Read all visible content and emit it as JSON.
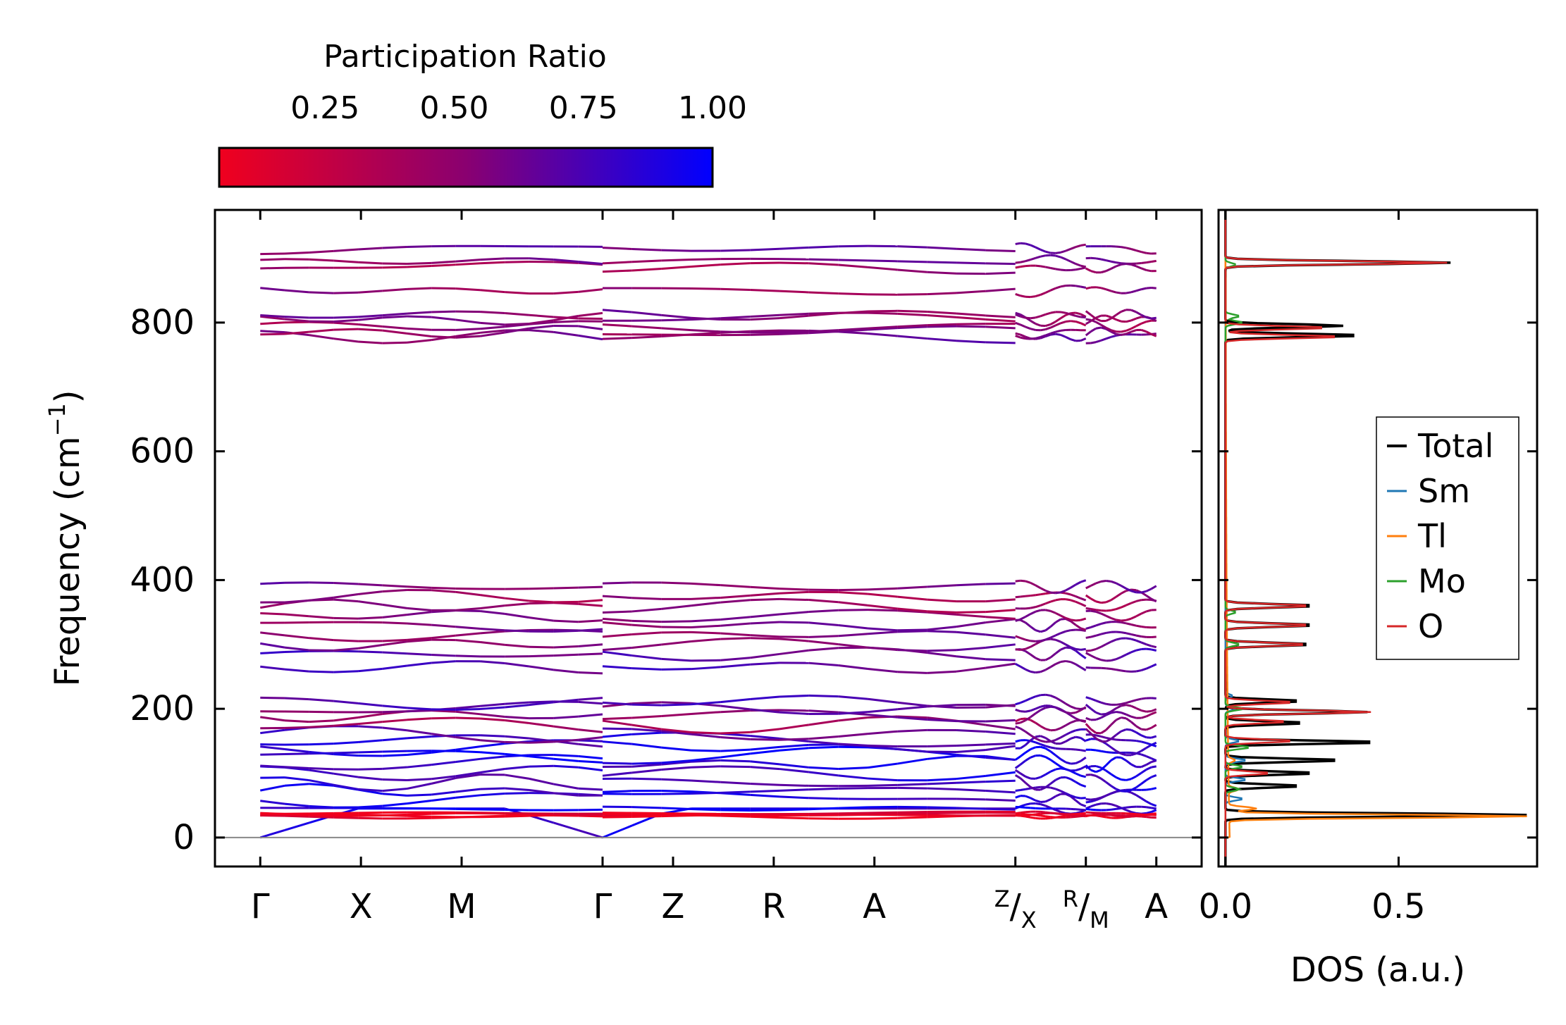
{
  "chart_data": [
    {
      "type": "line",
      "subtype": "phonon-band-structure",
      "ylabel_main": "Frequency (cm",
      "ylabel_sup": "−1",
      "ylabel_close": ")",
      "ylim": [
        -45,
        975
      ],
      "yticks": [
        0,
        200,
        400,
        600,
        800
      ],
      "path_labels": [
        "Γ",
        "X",
        "M",
        "Γ",
        "Z",
        "R",
        "A",
        "Z/X",
        "R/M",
        "A"
      ],
      "path_positions": [
        0,
        1.0,
        2.0,
        3.4,
        4.1,
        5.1,
        6.1,
        7.5,
        8.2,
        8.9
      ],
      "segments": [
        [
          0,
          3.4
        ],
        [
          3.4,
          7.5
        ],
        [
          7.5,
          8.2
        ],
        [
          8.2,
          8.9
        ]
      ],
      "colorbar": {
        "label": "Participation Ratio",
        "ticks": [
          0.25,
          0.5,
          0.75,
          1.0
        ],
        "tick_labels": [
          "0.25",
          "0.50",
          "0.75",
          "1.00"
        ],
        "range": [
          0.045,
          1.0
        ],
        "color_low": "#f0001e",
        "color_mid": "#8a0070",
        "color_high": "#0000ff"
      },
      "bands_approx": [
        {
          "f": 0,
          "pr": 0.85,
          "acoustic": true
        },
        {
          "f": 32,
          "pr": 0.05
        },
        {
          "f": 34,
          "pr": 0.05
        },
        {
          "f": 36,
          "pr": 0.06
        },
        {
          "f": 38,
          "pr": 0.07
        },
        {
          "f": 45,
          "pr": 0.9
        },
        {
          "f": 60,
          "pr": 0.85
        },
        {
          "f": 72,
          "pr": 0.85
        },
        {
          "f": 85,
          "pr": 0.8
        },
        {
          "f": 100,
          "pr": 0.85
        },
        {
          "f": 115,
          "pr": 0.85
        },
        {
          "f": 128,
          "pr": 0.9
        },
        {
          "f": 140,
          "pr": 0.85
        },
        {
          "f": 150,
          "pr": 0.8
        },
        {
          "f": 160,
          "pr": 0.7
        },
        {
          "f": 175,
          "pr": 0.45
        },
        {
          "f": 190,
          "pr": 0.55
        },
        {
          "f": 200,
          "pr": 0.6
        },
        {
          "f": 212,
          "pr": 0.7
        },
        {
          "f": 265,
          "pr": 0.7
        },
        {
          "f": 285,
          "pr": 0.7
        },
        {
          "f": 300,
          "pr": 0.6
        },
        {
          "f": 315,
          "pr": 0.55
        },
        {
          "f": 330,
          "pr": 0.55
        },
        {
          "f": 345,
          "pr": 0.5
        },
        {
          "f": 360,
          "pr": 0.45
        },
        {
          "f": 375,
          "pr": 0.45
        },
        {
          "f": 390,
          "pr": 0.6
        },
        {
          "f": 778,
          "pr": 0.6
        },
        {
          "f": 785,
          "pr": 0.5
        },
        {
          "f": 795,
          "pr": 0.45
        },
        {
          "f": 805,
          "pr": 0.5
        },
        {
          "f": 812,
          "pr": 0.55
        },
        {
          "f": 850,
          "pr": 0.5
        },
        {
          "f": 885,
          "pr": 0.45
        },
        {
          "f": 895,
          "pr": 0.55
        },
        {
          "f": 915,
          "pr": 0.6
        }
      ]
    },
    {
      "type": "line",
      "subtype": "density-of-states",
      "xlabel": "DOS (a.u.)",
      "xlim": [
        -0.02,
        0.9
      ],
      "xticks": [
        0.0,
        0.5
      ],
      "xtick_labels": [
        "0.0",
        "0.5"
      ],
      "ylim": [
        -45,
        975
      ],
      "series": [
        {
          "name": "Total",
          "color": "#000000",
          "peaks": [
            [
              35,
              0.87
            ],
            [
              80,
              0.22
            ],
            [
              100,
              0.26
            ],
            [
              120,
              0.34
            ],
            [
              148,
              0.45
            ],
            [
              178,
              0.23
            ],
            [
              195,
              0.41
            ],
            [
              212,
              0.22
            ],
            [
              300,
              0.25
            ],
            [
              330,
              0.26
            ],
            [
              360,
              0.26
            ],
            [
              780,
              0.4
            ],
            [
              795,
              0.34
            ],
            [
              893,
              0.65
            ]
          ]
        },
        {
          "name": "Sm",
          "color": "#1f77b4",
          "peaks": [
            [
              60,
              0.05
            ],
            [
              90,
              0.06
            ],
            [
              120,
              0.06
            ],
            [
              150,
              0.04
            ],
            [
              200,
              0.03
            ],
            [
              220,
              0.02
            ]
          ]
        },
        {
          "name": "Tl",
          "color": "#ff7f0e",
          "peaks": [
            [
              33,
              0.86
            ],
            [
              45,
              0.08
            ],
            [
              75,
              0.03
            ],
            [
              120,
              0.02
            ]
          ]
        },
        {
          "name": "Mo",
          "color": "#2ca02c",
          "peaks": [
            [
              75,
              0.04
            ],
            [
              110,
              0.05
            ],
            [
              140,
              0.07
            ],
            [
              200,
              0.05
            ],
            [
              300,
              0.04
            ],
            [
              350,
              0.03
            ],
            [
              800,
              0.05
            ],
            [
              810,
              0.04
            ],
            [
              890,
              0.03
            ]
          ]
        },
        {
          "name": "O",
          "color": "#d62728",
          "peaks": [
            [
              100,
              0.13
            ],
            [
              150,
              0.2
            ],
            [
              180,
              0.18
            ],
            [
              195,
              0.42
            ],
            [
              210,
              0.2
            ],
            [
              300,
              0.24
            ],
            [
              330,
              0.25
            ],
            [
              360,
              0.25
            ],
            [
              778,
              0.34
            ],
            [
              792,
              0.3
            ],
            [
              893,
              0.64
            ]
          ]
        }
      ],
      "legend_position": "center-right"
    }
  ]
}
